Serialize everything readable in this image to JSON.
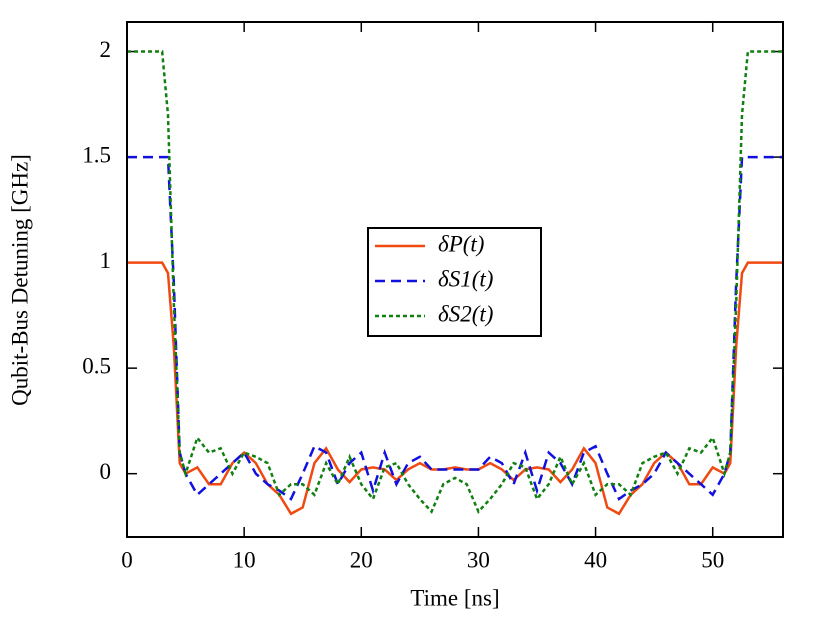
{
  "chart_data": {
    "type": "line",
    "xlabel": "Time [ns]",
    "ylabel": "Qubit-Bus Detuning [GHz]",
    "x": [
      0,
      1,
      2,
      3,
      3.5,
      4,
      4.5,
      5,
      6,
      7,
      8,
      9,
      10,
      11,
      12,
      13,
      14,
      15,
      16,
      17,
      18,
      19,
      20,
      21,
      22,
      23,
      24,
      25,
      26,
      27,
      28,
      29,
      30,
      31,
      32,
      33,
      34,
      35,
      36,
      37,
      38,
      39,
      40,
      41,
      42,
      43,
      44,
      45,
      46,
      47,
      48,
      49,
      50,
      51,
      51.5,
      52,
      52.5,
      53,
      54,
      55,
      56
    ],
    "series": [
      {
        "name": "δP(t)",
        "color": "#f04a12",
        "dash": "solid",
        "values": [
          1,
          1,
          1,
          1,
          0.95,
          0.6,
          0.05,
          0,
          0.03,
          -0.05,
          -0.05,
          0.05,
          0.1,
          0.05,
          -0.05,
          -0.1,
          -0.19,
          -0.16,
          0.05,
          0.12,
          0.02,
          -0.04,
          0.02,
          0.03,
          0.02,
          -0.03,
          0.02,
          0.05,
          0.02,
          0.02,
          0.03,
          0.02,
          0.02,
          0.05,
          0.02,
          -0.03,
          0.02,
          0.03,
          0.02,
          -0.04,
          0.02,
          0.12,
          0.05,
          -0.16,
          -0.19,
          -0.1,
          -0.05,
          0.05,
          0.1,
          0.05,
          -0.05,
          -0.05,
          0.03,
          0,
          0.05,
          0.6,
          0.95,
          1,
          1,
          1,
          1
        ]
      },
      {
        "name": "δS1(t)",
        "color": "#1010e0",
        "dash": "dashed",
        "values": [
          1.5,
          1.5,
          1.5,
          1.5,
          1.5,
          0.9,
          0.1,
          0,
          -0.1,
          -0.05,
          0,
          0.05,
          0.1,
          0,
          -0.05,
          -0.08,
          -0.12,
          0,
          0.13,
          0.1,
          -0.05,
          0.05,
          0.1,
          -0.08,
          0.1,
          -0.05,
          0.05,
          0.08,
          0.02,
          0.02,
          0.02,
          0.02,
          0.02,
          0.08,
          0.05,
          -0.05,
          0.1,
          -0.08,
          0.1,
          0.05,
          -0.05,
          0.1,
          0.13,
          0,
          -0.12,
          -0.08,
          -0.05,
          0,
          0.1,
          0.05,
          0,
          -0.05,
          -0.1,
          0,
          0.1,
          0.9,
          1.5,
          1.5,
          1.5,
          1.5,
          1.5
        ]
      },
      {
        "name": "δS2(t)",
        "color": "#108010",
        "dash": "dotted",
        "values": [
          2,
          2,
          2,
          2,
          1.7,
          0.8,
          0.1,
          0,
          0.17,
          0.1,
          0.12,
          0,
          0.1,
          0.08,
          0.05,
          -0.1,
          -0.05,
          -0.05,
          -0.1,
          0.05,
          -0.05,
          0.08,
          -0.05,
          -0.12,
          0.03,
          0.05,
          -0.05,
          -0.12,
          -0.18,
          -0.05,
          -0.02,
          -0.05,
          -0.18,
          -0.12,
          -0.05,
          0.05,
          0.03,
          -0.12,
          -0.05,
          0.08,
          -0.05,
          0.05,
          -0.1,
          -0.05,
          -0.05,
          -0.1,
          0.05,
          0.08,
          0.1,
          0,
          0.12,
          0.1,
          0.17,
          0,
          0.1,
          0.8,
          1.7,
          2,
          2,
          2,
          2
        ]
      }
    ],
    "xlim": [
      0,
      56
    ],
    "ylim": [
      -0.3,
      2.14
    ],
    "xticks": [
      0,
      10,
      20,
      30,
      40,
      50
    ],
    "yticks": [
      0,
      0.5,
      1,
      1.5,
      2
    ],
    "grid": false,
    "legend": "center"
  }
}
